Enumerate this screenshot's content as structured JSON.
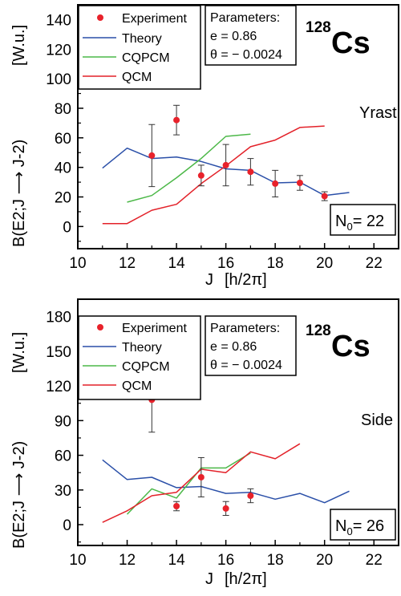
{
  "chart_data": [
    {
      "type": "line",
      "xlabel_main": "J",
      "xlabel_unit": "[h/2π]",
      "ylabel_main": "B(E2;J ⟶ J-2)",
      "ylabel_unit": "[W.u.]",
      "xlim": [
        10,
        23
      ],
      "ylim": [
        -15,
        150
      ],
      "xticks": [
        10,
        12,
        14,
        16,
        18,
        20,
        22
      ],
      "yticks": [
        0,
        20,
        40,
        60,
        80,
        100,
        120,
        140
      ],
      "legend": [
        "Experiment",
        "Theory",
        "CQPCM",
        "QCM"
      ],
      "parameters": {
        "title": "Parameters:",
        "e": "e = 0.86",
        "theta": "θ = − 0.0024"
      },
      "nucleus": {
        "mass": "128",
        "symbol": "Cs"
      },
      "band": "Yrast",
      "n0": {
        "prefix": "N",
        "sub": "0",
        "suffix": "= 22"
      },
      "series": [
        {
          "name": "Theory",
          "color": "#2a4fa8",
          "x": [
            11,
            12,
            13,
            14,
            15,
            16,
            17,
            18,
            19,
            20,
            21
          ],
          "y": [
            39.5,
            53,
            46,
            47,
            44,
            39,
            38,
            29.5,
            30,
            21,
            23
          ]
        },
        {
          "name": "CQPCM",
          "color": "#4cb848",
          "x": [
            12,
            13,
            14,
            15,
            16,
            17
          ],
          "y": [
            16.5,
            21,
            33,
            46,
            61,
            62.5
          ]
        },
        {
          "name": "QCM",
          "color": "#e32129",
          "x": [
            11,
            12,
            13,
            14,
            15,
            16,
            17,
            18,
            19,
            20
          ],
          "y": [
            2,
            2,
            11,
            15,
            29,
            41,
            54,
            58.5,
            67,
            68
          ]
        },
        {
          "name": "Experiment",
          "color": "#e8222b",
          "x": [
            13,
            14,
            15,
            16,
            17,
            18,
            19,
            20
          ],
          "y": [
            48,
            72,
            34.5,
            41.5,
            37,
            29,
            29.5,
            20.5
          ],
          "err": [
            21,
            10,
            7,
            14,
            9,
            9,
            5,
            3
          ]
        }
      ]
    },
    {
      "type": "line",
      "xlabel_main": "J",
      "xlabel_unit": "[h/2π]",
      "ylabel_main": "B(E2;J ⟶ J-2)",
      "ylabel_unit": "[W.u.]",
      "xlim": [
        10,
        23
      ],
      "ylim": [
        -18,
        195
      ],
      "xticks": [
        10,
        12,
        14,
        16,
        18,
        20,
        22
      ],
      "yticks": [
        0,
        30,
        60,
        90,
        120,
        150,
        180
      ],
      "legend": [
        "Experiment",
        "Theory",
        "CQPCM",
        "QCM"
      ],
      "parameters": {
        "title": "Parameters:",
        "e": "e = 0.86",
        "theta": "θ = − 0.0024"
      },
      "nucleus": {
        "mass": "128",
        "symbol": "Cs"
      },
      "band": "Side",
      "n0": {
        "prefix": "N",
        "sub": "0",
        "suffix": "= 26"
      },
      "series": [
        {
          "name": "Theory",
          "color": "#2a4fa8",
          "x": [
            11,
            12,
            13,
            14,
            15,
            16,
            17,
            18,
            19,
            20,
            21
          ],
          "y": [
            56,
            39,
            41,
            32,
            33,
            27,
            28,
            22,
            27,
            19,
            29
          ]
        },
        {
          "name": "CQPCM",
          "color": "#4cb848",
          "x": [
            12,
            13,
            14,
            15,
            16,
            17
          ],
          "y": [
            9,
            31,
            23,
            49,
            49,
            62
          ]
        },
        {
          "name": "QCM",
          "color": "#e32129",
          "x": [
            11,
            12,
            13,
            14,
            15,
            16,
            17,
            18,
            19
          ],
          "y": [
            2,
            12,
            25,
            28,
            48,
            45,
            63,
            57,
            70
          ]
        },
        {
          "name": "Experiment",
          "color": "#e8222b",
          "x": [
            13,
            14,
            15,
            16,
            17
          ],
          "y": [
            108,
            16,
            41,
            14,
            25
          ],
          "err": [
            28,
            4,
            17,
            6,
            6
          ]
        }
      ]
    }
  ]
}
